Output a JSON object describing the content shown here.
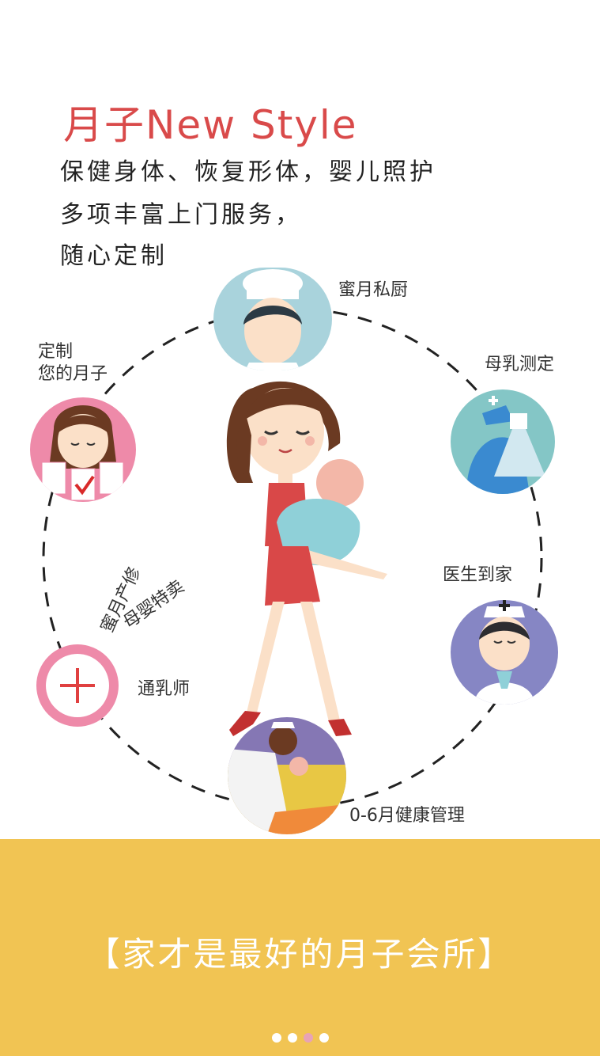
{
  "header": {
    "title": "月子New Style",
    "lines": [
      "保健身体、恢复形体，婴儿照护",
      "多项丰富上门服务，",
      "随心定制"
    ]
  },
  "services": {
    "chef": "蜜月私厨",
    "milk": "母乳测定",
    "doctor": "医生到家",
    "health": "0-6月健康管理",
    "lactation": "通乳师",
    "shop": "母婴特卖",
    "repair": "蜜月产修",
    "custom_1": "定制",
    "custom_2": "您的月子"
  },
  "banner": {
    "slogan": "【家才是最好的月子会所】"
  },
  "pager": {
    "count": 4,
    "active_index": 2
  },
  "colors": {
    "accent": "#d94a4a",
    "banner": "#f1c453",
    "pager_active": "#e8a3b6"
  }
}
